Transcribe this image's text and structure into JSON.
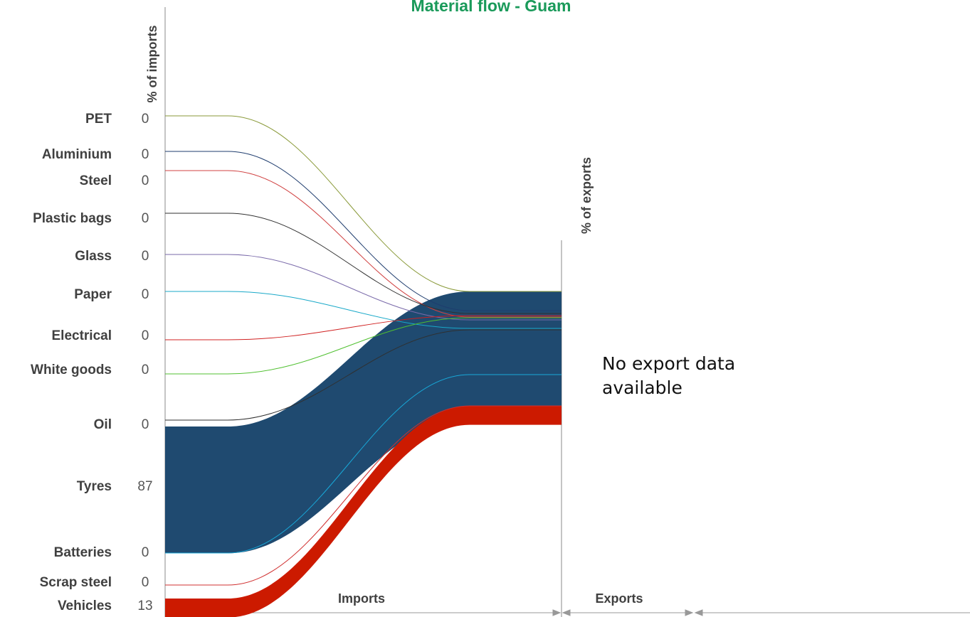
{
  "chart_data": {
    "type": "sankey",
    "title": "Material flow - Guam",
    "left_axis_label": "% of imports",
    "right_axis_label": "% of exports",
    "note": "No export data available",
    "left_section": "Imports",
    "right_section": "Exports",
    "categories": [
      "PET",
      "Aluminium",
      "Steel",
      "Plastic bags",
      "Glass",
      "Paper",
      "Electrical",
      "White goods",
      "Oil",
      "Tyres",
      "Batteries",
      "Scrap steel",
      "Vehicles"
    ],
    "values": [
      0,
      0,
      0,
      0,
      0,
      0,
      0,
      0,
      0,
      87,
      0,
      0,
      13
    ],
    "colors": [
      "#8a9a3a",
      "#1f3d6e",
      "#d04040",
      "#303030",
      "#7a6aaa",
      "#18a8c8",
      "#d02020",
      "#50c030",
      "#303030",
      "#1f4a70",
      "#18a8d8",
      "#d03030",
      "#cc1a00"
    ]
  }
}
